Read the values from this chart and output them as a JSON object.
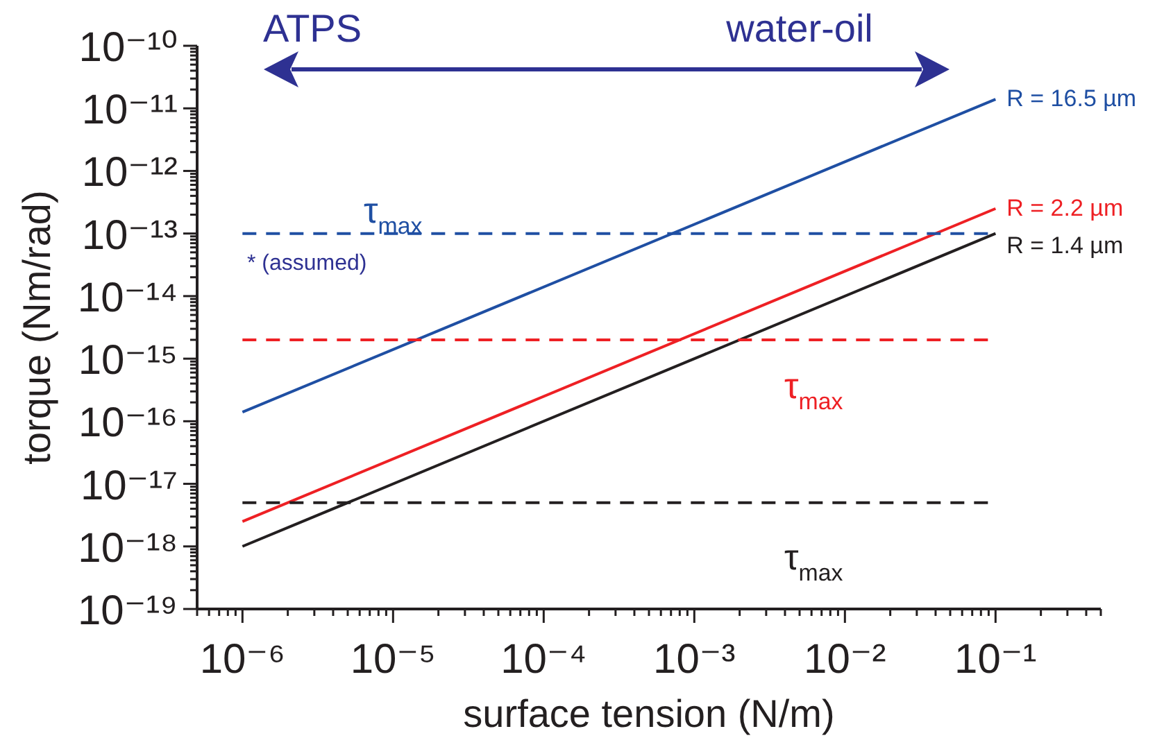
{
  "chart_data": {
    "type": "line",
    "xlabel": "surface tension (N/m)",
    "ylabel": "torque (Nm/rad)",
    "log": "xy",
    "grid": false,
    "legend": false,
    "marker": "none",
    "xlim": [
      5e-07,
      0.5
    ],
    "ylim": [
      1e-19,
      1e-10
    ],
    "xticks": [
      {
        "value": 5e-07,
        "label": null
      },
      {
        "value": 6e-07,
        "label": null
      },
      {
        "value": 7e-07,
        "label": null
      },
      {
        "value": 8e-07,
        "label": null
      },
      {
        "value": 9e-07,
        "label": null
      },
      {
        "value": 1e-06,
        "label": "10⁻⁶"
      },
      {
        "value": 2e-06,
        "label": null
      },
      {
        "value": 3e-06,
        "label": null
      },
      {
        "value": 4e-06,
        "label": null
      },
      {
        "value": 5e-06,
        "label": null
      },
      {
        "value": 6e-06,
        "label": null
      },
      {
        "value": 7e-06,
        "label": null
      },
      {
        "value": 8e-06,
        "label": null
      },
      {
        "value": 9e-06,
        "label": null
      },
      {
        "value": 1e-05,
        "label": "10⁻⁵"
      },
      {
        "value": 2e-05,
        "label": null
      },
      {
        "value": 3e-05,
        "label": null
      },
      {
        "value": 4e-05,
        "label": null
      },
      {
        "value": 5e-05,
        "label": null
      },
      {
        "value": 6e-05,
        "label": null
      },
      {
        "value": 7e-05,
        "label": null
      },
      {
        "value": 8e-05,
        "label": null
      },
      {
        "value": 9e-05,
        "label": null
      },
      {
        "value": 0.0001,
        "label": "10⁻⁴"
      },
      {
        "value": 0.0002,
        "label": null
      },
      {
        "value": 0.0003,
        "label": null
      },
      {
        "value": 0.0004,
        "label": null
      },
      {
        "value": 0.0005,
        "label": null
      },
      {
        "value": 0.0006,
        "label": null
      },
      {
        "value": 0.0007,
        "label": null
      },
      {
        "value": 0.0008,
        "label": null
      },
      {
        "value": 0.0009,
        "label": null
      },
      {
        "value": 0.001,
        "label": "10⁻³"
      },
      {
        "value": 0.002,
        "label": null
      },
      {
        "value": 0.003,
        "label": null
      },
      {
        "value": 0.004,
        "label": null
      },
      {
        "value": 0.005,
        "label": null
      },
      {
        "value": 0.006,
        "label": null
      },
      {
        "value": 0.007,
        "label": null
      },
      {
        "value": 0.008,
        "label": null
      },
      {
        "value": 0.009,
        "label": null
      },
      {
        "value": 0.01,
        "label": "10⁻²"
      },
      {
        "value": 0.02,
        "label": null
      },
      {
        "value": 0.03,
        "label": null
      },
      {
        "value": 0.04,
        "label": null
      },
      {
        "value": 0.05,
        "label": null
      },
      {
        "value": 0.06,
        "label": null
      },
      {
        "value": 0.07,
        "label": null
      },
      {
        "value": 0.08,
        "label": null
      },
      {
        "value": 0.09,
        "label": null
      },
      {
        "value": 0.1,
        "label": "10⁻¹"
      },
      {
        "value": 0.2,
        "label": null
      },
      {
        "value": 0.3,
        "label": null
      },
      {
        "value": 0.4,
        "label": null
      },
      {
        "value": 0.5,
        "label": null
      }
    ],
    "yticks": [
      {
        "value": 1e-19,
        "label": "10⁻¹⁹"
      },
      {
        "value": 2e-19,
        "label": null
      },
      {
        "value": 3e-19,
        "label": null
      },
      {
        "value": 4e-19,
        "label": null
      },
      {
        "value": 5e-19,
        "label": null
      },
      {
        "value": 6e-19,
        "label": null
      },
      {
        "value": 7e-19,
        "label": null
      },
      {
        "value": 8e-19,
        "label": null
      },
      {
        "value": 9e-19,
        "label": null
      },
      {
        "value": 1e-18,
        "label": "10⁻¹⁸"
      },
      {
        "value": 2e-18,
        "label": null
      },
      {
        "value": 3e-18,
        "label": null
      },
      {
        "value": 4e-18,
        "label": null
      },
      {
        "value": 5e-18,
        "label": null
      },
      {
        "value": 6e-18,
        "label": null
      },
      {
        "value": 7e-18,
        "label": null
      },
      {
        "value": 8e-18,
        "label": null
      },
      {
        "value": 9e-18,
        "label": null
      },
      {
        "value": 1e-17,
        "label": "10⁻¹⁷"
      },
      {
        "value": 2e-17,
        "label": null
      },
      {
        "value": 3e-17,
        "label": null
      },
      {
        "value": 4e-17,
        "label": null
      },
      {
        "value": 5e-17,
        "label": null
      },
      {
        "value": 6e-17,
        "label": null
      },
      {
        "value": 7e-17,
        "label": null
      },
      {
        "value": 8e-17,
        "label": null
      },
      {
        "value": 9e-17,
        "label": null
      },
      {
        "value": 1e-16,
        "label": "10⁻¹⁶"
      },
      {
        "value": 2e-16,
        "label": null
      },
      {
        "value": 3e-16,
        "label": null
      },
      {
        "value": 4e-16,
        "label": null
      },
      {
        "value": 5e-16,
        "label": null
      },
      {
        "value": 6e-16,
        "label": null
      },
      {
        "value": 7e-16,
        "label": null
      },
      {
        "value": 8e-16,
        "label": null
      },
      {
        "value": 9e-16,
        "label": null
      },
      {
        "value": 1e-15,
        "label": "10⁻¹⁵"
      },
      {
        "value": 2e-15,
        "label": null
      },
      {
        "value": 3e-15,
        "label": null
      },
      {
        "value": 4e-15,
        "label": null
      },
      {
        "value": 5e-15,
        "label": null
      },
      {
        "value": 6e-15,
        "label": null
      },
      {
        "value": 7e-15,
        "label": null
      },
      {
        "value": 8e-15,
        "label": null
      },
      {
        "value": 9e-15,
        "label": null
      },
      {
        "value": 1e-14,
        "label": "10⁻¹⁴"
      },
      {
        "value": 2e-14,
        "label": null
      },
      {
        "value": 3e-14,
        "label": null
      },
      {
        "value": 4e-14,
        "label": null
      },
      {
        "value": 5e-14,
        "label": null
      },
      {
        "value": 6e-14,
        "label": null
      },
      {
        "value": 7e-14,
        "label": null
      },
      {
        "value": 8e-14,
        "label": null
      },
      {
        "value": 9e-14,
        "label": null
      },
      {
        "value": 1e-13,
        "label": "10⁻¹³"
      },
      {
        "value": 2e-13,
        "label": null
      },
      {
        "value": 3e-13,
        "label": null
      },
      {
        "value": 4e-13,
        "label": null
      },
      {
        "value": 5e-13,
        "label": null
      },
      {
        "value": 6e-13,
        "label": null
      },
      {
        "value": 7e-13,
        "label": null
      },
      {
        "value": 8e-13,
        "label": null
      },
      {
        "value": 9e-13,
        "label": null
      },
      {
        "value": 1e-12,
        "label": "10⁻¹²"
      },
      {
        "value": 2e-12,
        "label": null
      },
      {
        "value": 3e-12,
        "label": null
      },
      {
        "value": 4e-12,
        "label": null
      },
      {
        "value": 5e-12,
        "label": null
      },
      {
        "value": 6e-12,
        "label": null
      },
      {
        "value": 7e-12,
        "label": null
      },
      {
        "value": 8e-12,
        "label": null
      },
      {
        "value": 9e-12,
        "label": null
      },
      {
        "value": 1e-11,
        "label": "10⁻¹¹"
      },
      {
        "value": 2e-11,
        "label": null
      },
      {
        "value": 3e-11,
        "label": null
      },
      {
        "value": 4e-11,
        "label": null
      },
      {
        "value": 5e-11,
        "label": null
      },
      {
        "value": 6e-11,
        "label": null
      },
      {
        "value": 7e-11,
        "label": null
      },
      {
        "value": 8e-11,
        "label": null
      },
      {
        "value": 9e-11,
        "label": null
      },
      {
        "value": 1e-10,
        "label": "10⁻¹⁰"
      }
    ],
    "series": [
      {
        "name": "R = 16.5 µm",
        "color": "#1f4fa3",
        "line_style": "solid",
        "x": [
          1e-06,
          0.1
        ],
        "values": [
          1.4e-16,
          1.4e-11
        ]
      },
      {
        "name": "R = 2.2 µm",
        "color": "#ee2024",
        "line_style": "solid",
        "x": [
          1e-06,
          0.1
        ],
        "values": [
          2.5e-18,
          2.5e-13
        ]
      },
      {
        "name": "R = 1.4 µm",
        "color": "#231f20",
        "line_style": "solid",
        "x": [
          1e-06,
          0.1
        ],
        "values": [
          1e-18,
          1e-13
        ]
      },
      {
        "name": "τ$_{max}$",
        "color": "#1f4fa3",
        "line_style": "dashed",
        "x": [
          1e-06,
          0.09
        ],
        "values": [
          1e-13,
          1e-13
        ]
      },
      {
        "name": "τ$_{max}$",
        "color": "#ee2024",
        "line_style": "dashed",
        "x": [
          1e-06,
          0.09
        ],
        "values": [
          2e-15,
          2e-15
        ]
      },
      {
        "name": "τ$_{max}$",
        "color": "#231f20",
        "line_style": "dashed",
        "x": [
          1e-06,
          0.09
        ],
        "values": [
          5e-18,
          5e-18
        ]
      }
    ],
    "annotations": [
      "ATPS",
      "water-oil",
      "* (assumed)"
    ]
  }
}
